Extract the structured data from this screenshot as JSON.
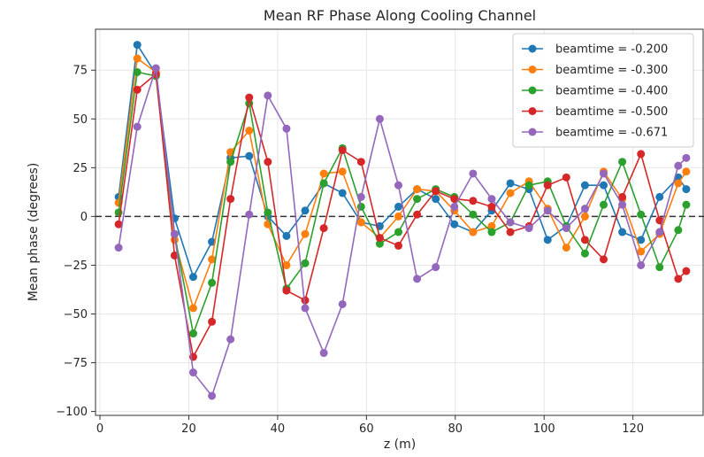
{
  "chart_data": {
    "type": "line",
    "title": "Mean RF Phase Along Cooling Channel",
    "xlabel": "z (m)",
    "ylabel": "Mean phase (degrees)",
    "xlim": [
      -1,
      136
    ],
    "ylim": [
      -102,
      96
    ],
    "xticks": [
      0,
      20,
      40,
      60,
      80,
      100,
      120
    ],
    "yticks": [
      -100,
      -75,
      -50,
      -25,
      0,
      25,
      50,
      75
    ],
    "grid": true,
    "legend_position": "top-right",
    "reference_line": {
      "y": 0,
      "style": "dashed",
      "color": "#333333"
    },
    "x": [
      4.2,
      8.4,
      12.6,
      16.8,
      21.0,
      25.2,
      29.4,
      33.6,
      37.8,
      42.0,
      46.2,
      50.4,
      54.6,
      58.8,
      63.0,
      67.2,
      71.4,
      75.6,
      79.8,
      84.0,
      88.2,
      92.4,
      96.6,
      100.8,
      105.0,
      109.2,
      113.4,
      117.6,
      121.8,
      126.0,
      130.2,
      132.0
    ],
    "series": [
      {
        "name": "beamtime = -0.200",
        "color": "#1f77b4",
        "values": [
          10,
          88,
          73,
          -1,
          -31,
          -13,
          30,
          31,
          0,
          -10,
          3,
          17,
          12,
          -3,
          -5,
          5,
          14,
          9,
          -4,
          -8,
          3,
          17,
          14,
          -12,
          -5,
          16,
          16,
          -8,
          -12,
          10,
          20,
          14
        ]
      },
      {
        "name": "beamtime = -0.300",
        "color": "#ff7f0e",
        "values": [
          7,
          81,
          74,
          -12,
          -47,
          -22,
          33,
          44,
          -4,
          -25,
          -9,
          22,
          23,
          -3,
          -11,
          0,
          14,
          13,
          3,
          -8,
          -5,
          12,
          18,
          4,
          -16,
          0,
          23,
          9,
          -18,
          -9,
          17,
          23
        ]
      },
      {
        "name": "beamtime = -0.400",
        "color": "#2ca02c",
        "values": [
          2,
          74,
          72,
          -9,
          -60,
          -34,
          28,
          58,
          2,
          -37,
          -24,
          17,
          35,
          5,
          -14,
          -8,
          9,
          14,
          10,
          1,
          -8,
          -3,
          16,
          18,
          -5,
          -19,
          6,
          28,
          1,
          -26,
          -7,
          6
        ]
      },
      {
        "name": "beamtime = -0.500",
        "color": "#d62728",
        "values": [
          -4,
          65,
          73,
          -20,
          -72,
          -54,
          9,
          61,
          28,
          -38,
          -43,
          -6,
          34,
          28,
          -11,
          -15,
          1,
          13,
          9,
          8,
          5,
          -8,
          -5,
          16,
          20,
          -12,
          -22,
          10,
          32,
          -2,
          -32,
          -28
        ]
      },
      {
        "name": "beamtime = -0.671",
        "color": "#9467bd",
        "values": [
          -16,
          46,
          76,
          -9,
          -80,
          -92,
          -63,
          1,
          62,
          45,
          -47,
          -70,
          -45,
          10,
          50,
          16,
          -32,
          -26,
          5,
          22,
          9,
          -3,
          -6,
          3,
          -6,
          4,
          22,
          6,
          -25,
          -8,
          26,
          30
        ]
      }
    ]
  }
}
